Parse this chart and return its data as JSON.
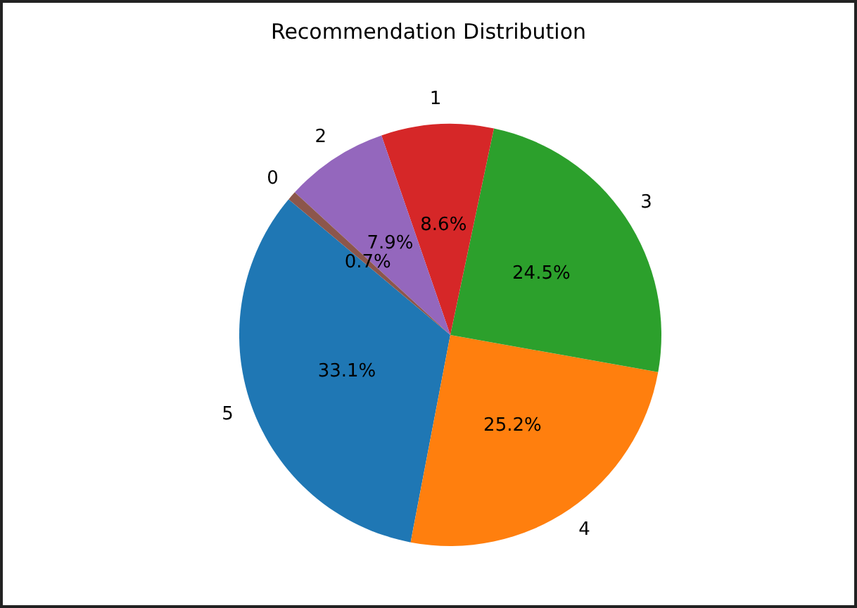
{
  "chart_data": {
    "type": "pie",
    "title": "Recommendation Distribution",
    "categories": [
      "5",
      "4",
      "3",
      "1",
      "2",
      "0"
    ],
    "values": [
      33.1,
      25.2,
      24.5,
      8.6,
      7.9,
      0.7
    ],
    "value_labels": [
      "33.1%",
      "25.2%",
      "24.5%",
      "8.6%",
      "7.9%",
      "0.7%"
    ],
    "colors": [
      "#1f77b4",
      "#ff7f0e",
      "#2ca02c",
      "#d62728",
      "#9467bd",
      "#8c564b"
    ],
    "legend": false
  }
}
